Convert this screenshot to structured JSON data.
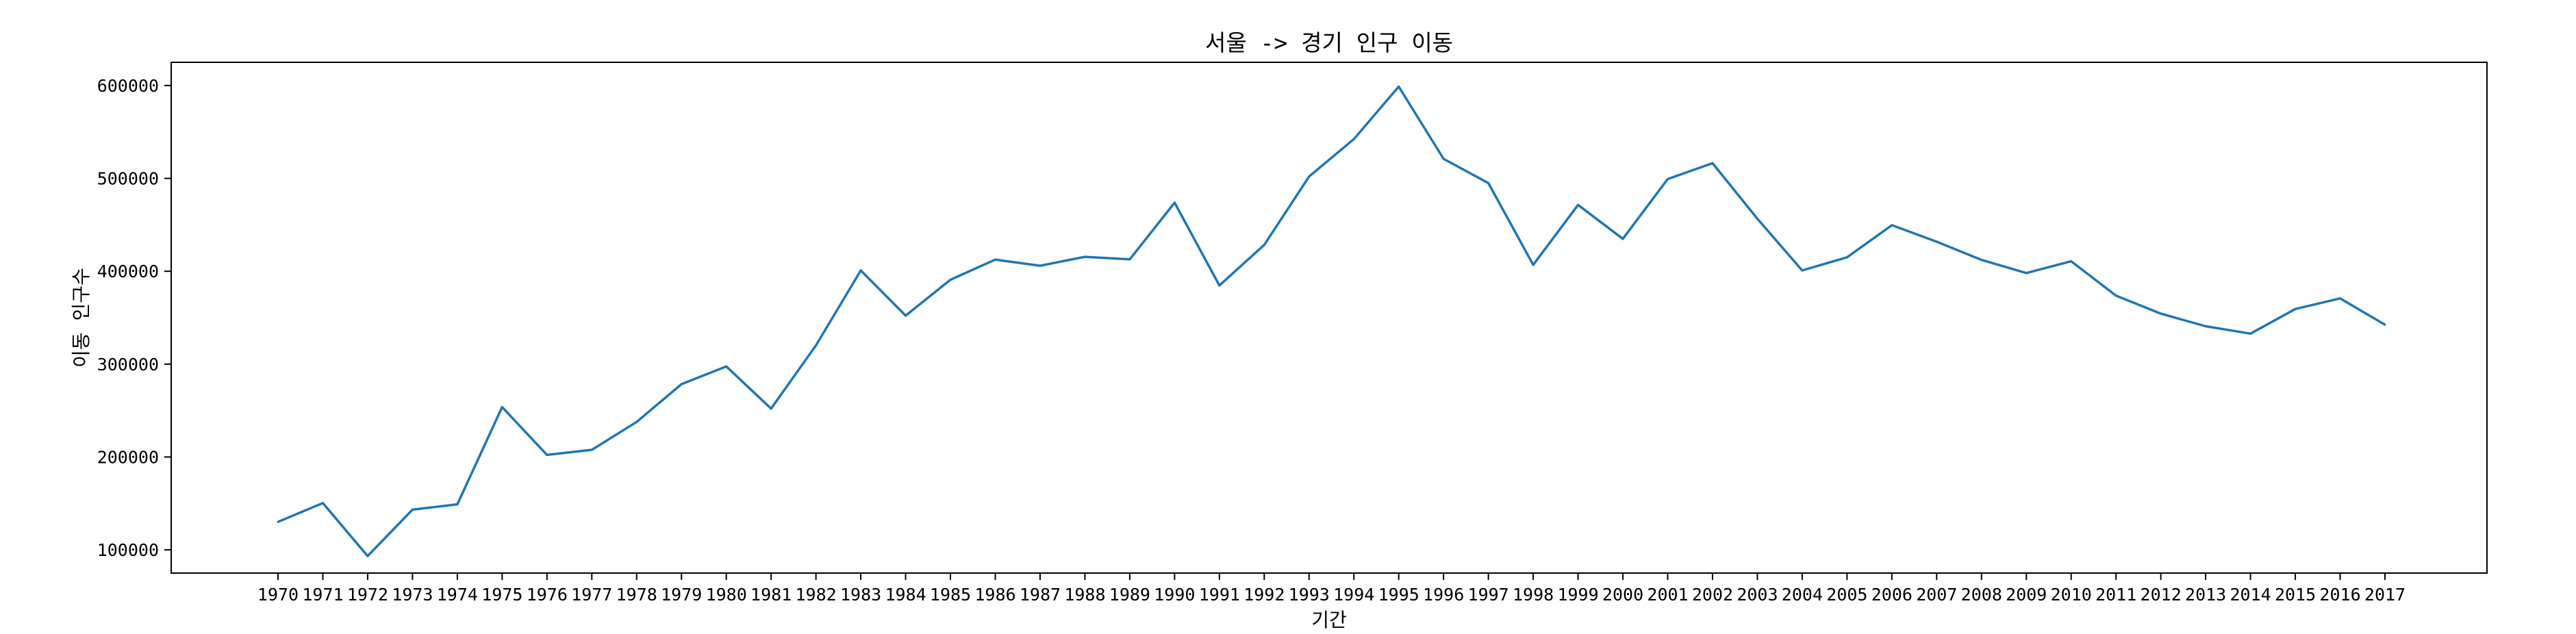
{
  "chart_data": {
    "type": "line",
    "title": "서울 -> 경기 인구 이동",
    "xlabel": "기간",
    "ylabel": "이동 인구수",
    "categories": [
      "1970",
      "1971",
      "1972",
      "1973",
      "1974",
      "1975",
      "1976",
      "1977",
      "1978",
      "1979",
      "1980",
      "1981",
      "1982",
      "1983",
      "1984",
      "1985",
      "1986",
      "1987",
      "1988",
      "1989",
      "1990",
      "1991",
      "1992",
      "1993",
      "1994",
      "1995",
      "1996",
      "1997",
      "1998",
      "1999",
      "2000",
      "2001",
      "2002",
      "2003",
      "2004",
      "2005",
      "2006",
      "2007",
      "2008",
      "2009",
      "2010",
      "2011",
      "2012",
      "2013",
      "2014",
      "2015",
      "2016",
      "2017"
    ],
    "series": [
      {
        "values": [
          130149,
          150313,
          93333,
          143234,
          149045,
          253705,
          202276,
          207722,
          237684,
          278411,
          297539,
          252073,
          320174,
          400875,
          352238,
          390846,
          412528,
          405954,
          415540,
          412802,
          473889,
          384714,
          428344,
          502010,
          542284,
          598818,
          521077,
          494942,
          406911,
          471462,
          434935,
          499260,
          516358,
          456573,
          400848,
          415044,
          449606,
          431811,
          412226,
          398058,
          410735,
          373771,
          354383,
          340805,
          332785,
          359337,
          370760,
          342433
        ],
        "color": "#1f77b4"
      }
    ],
    "yticks": [
      100000,
      200000,
      300000,
      400000,
      500000,
      600000
    ],
    "ylim": [
      75000,
      625000
    ],
    "grid": false,
    "legend": "none"
  }
}
